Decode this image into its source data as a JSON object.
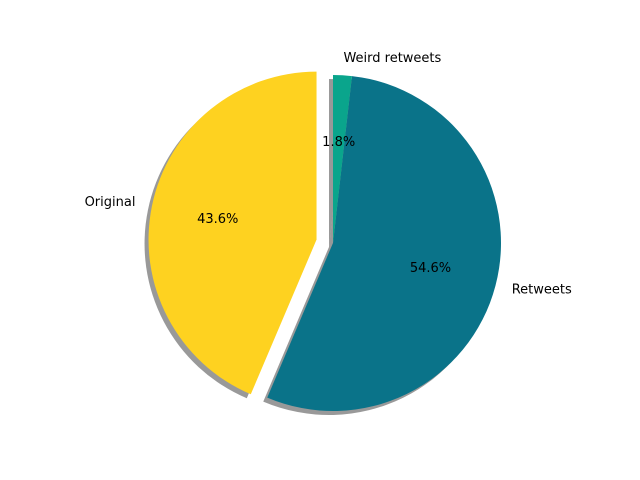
{
  "chart_data": {
    "type": "pie",
    "title": "",
    "slices": [
      {
        "label": "Original",
        "percent": 43.6,
        "pct_label": "43.6%",
        "color": "#fed220",
        "exploded": true
      },
      {
        "label": "Retweets",
        "percent": 54.6,
        "pct_label": "54.6%",
        "color": "#0a7389",
        "exploded": false
      },
      {
        "label": "Weird retweets",
        "percent": 1.8,
        "pct_label": "1.8%",
        "color": "#0aa58c",
        "exploded": false
      }
    ],
    "start_angle_deg": 90,
    "direction": "counterclockwise",
    "shadow": true,
    "legend": "none"
  }
}
